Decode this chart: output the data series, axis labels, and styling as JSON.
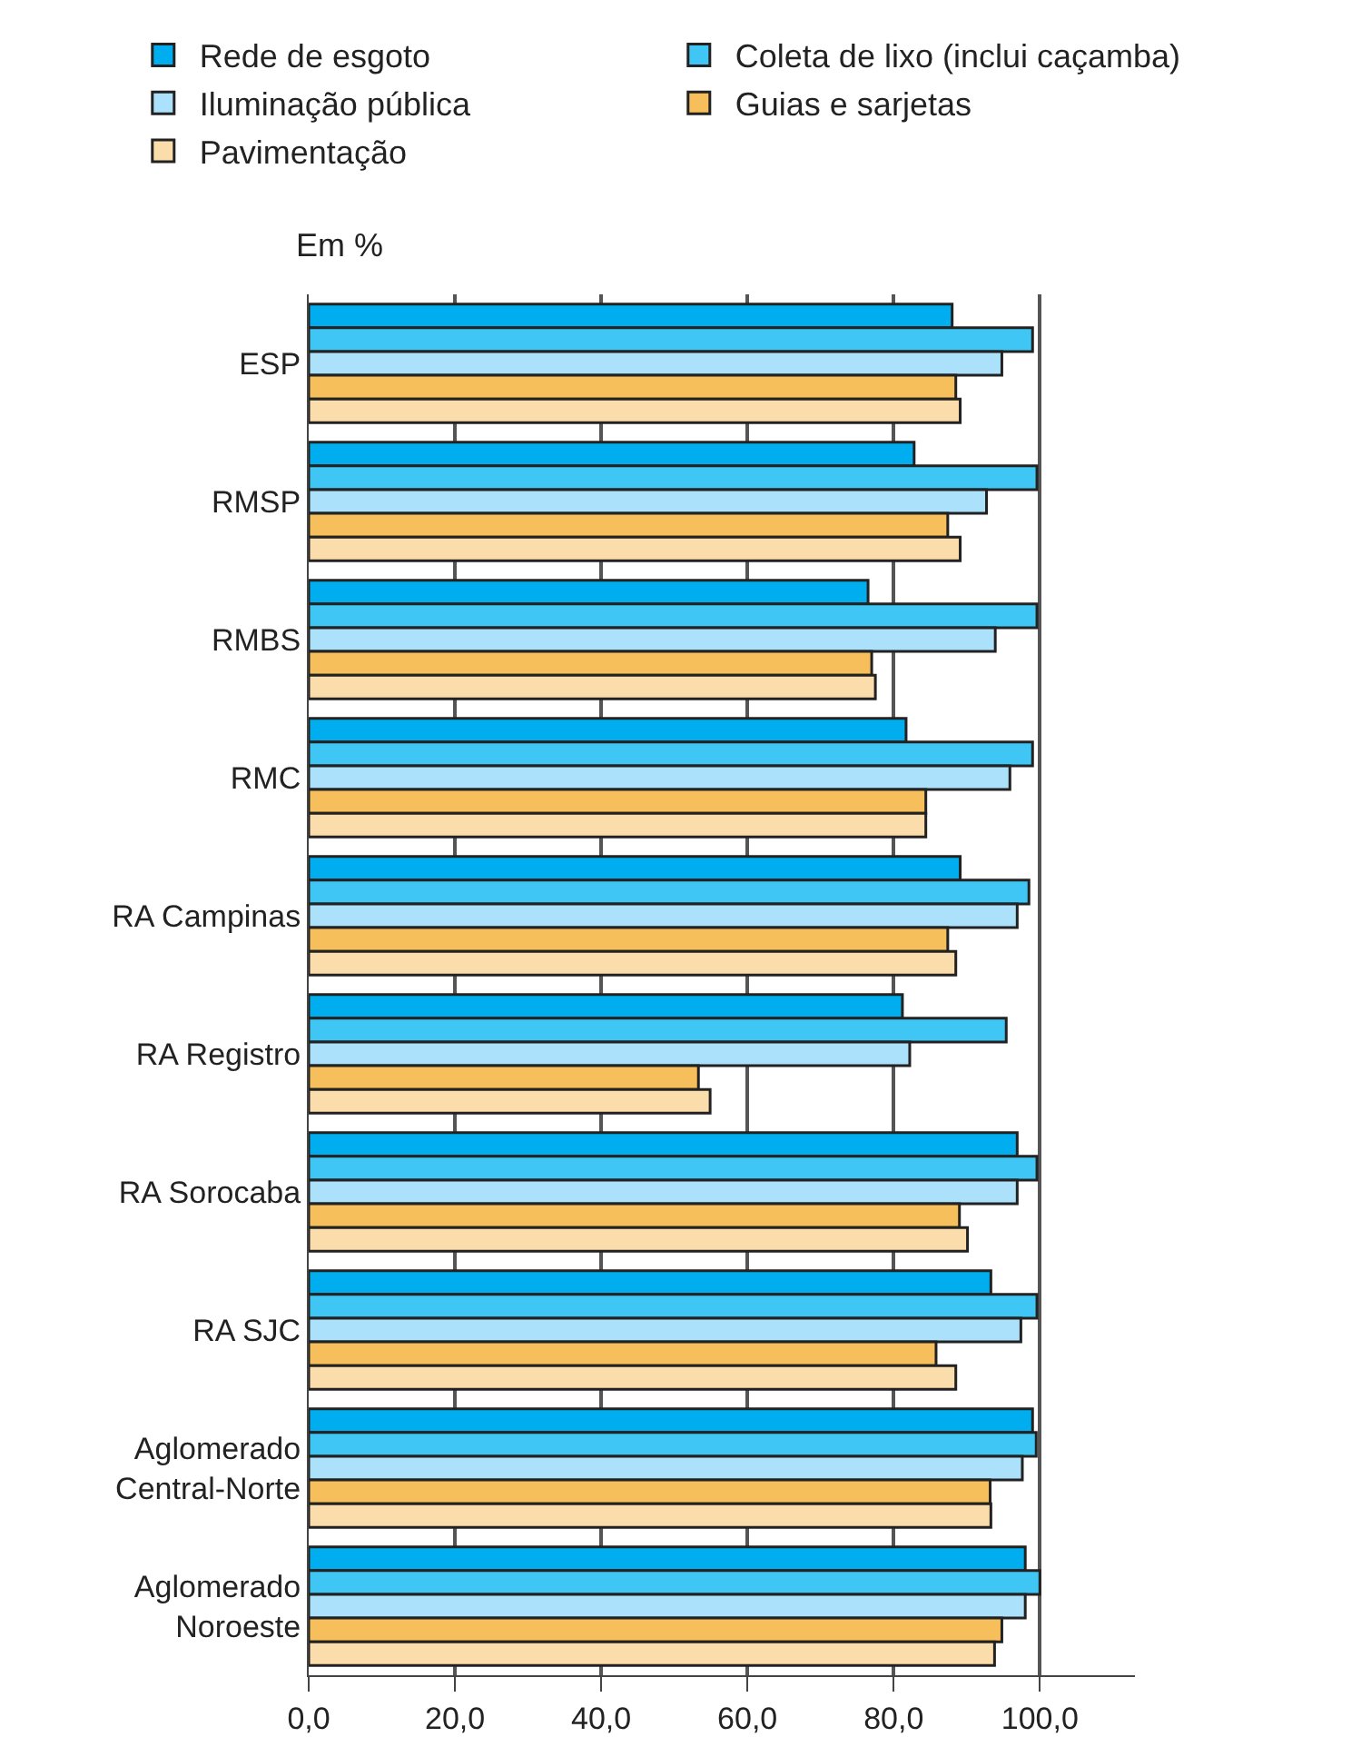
{
  "chart_data": {
    "type": "bar",
    "orientation": "horizontal",
    "ylabel": "Em %",
    "categories": [
      "ESP",
      "RMSP",
      "RMBS",
      "RMC",
      "RA Campinas",
      "RA Registro",
      "RA Sorocaba",
      "RA SJC",
      "Aglomerado\nCentral-Norte",
      "Aglomerado\nNoroeste"
    ],
    "series": [
      {
        "name": "Rede de esgoto",
        "color": "#00aeef",
        "values": [
          88.0,
          82.8,
          76.5,
          81.7,
          89.1,
          81.2,
          96.9,
          93.3,
          99.0,
          98.0
        ]
      },
      {
        "name": "Coleta de lixo (inclui caçamba)",
        "color": "#40c6f4",
        "values": [
          99.0,
          99.6,
          99.6,
          99.0,
          98.5,
          95.4,
          99.6,
          99.6,
          99.5,
          100.0
        ]
      },
      {
        "name": "Iluminação pública",
        "color": "#abe1fa",
        "values": [
          94.8,
          92.7,
          93.9,
          95.9,
          96.9,
          82.2,
          96.9,
          97.4,
          97.6,
          98.0
        ]
      },
      {
        "name": "Guias e sarjetas",
        "color": "#f7be5c",
        "values": [
          88.5,
          87.4,
          77.0,
          84.4,
          87.4,
          53.3,
          89.0,
          85.8,
          93.2,
          94.8
        ]
      },
      {
        "name": "Pavimentação",
        "color": "#fbdcab",
        "values": [
          89.1,
          89.1,
          77.5,
          84.4,
          88.5,
          54.9,
          90.1,
          88.5,
          93.3,
          93.8
        ]
      }
    ],
    "xlim": [
      0,
      113
    ],
    "xticks": [
      {
        "value": 0,
        "label": "0,0"
      },
      {
        "value": 20,
        "label": "20,0"
      },
      {
        "value": 40,
        "label": "40,0"
      },
      {
        "value": 60,
        "label": "60,0"
      },
      {
        "value": 80,
        "label": "80,0"
      },
      {
        "value": 100,
        "label": "100,0"
      }
    ],
    "grid": "x",
    "legend": "top"
  }
}
